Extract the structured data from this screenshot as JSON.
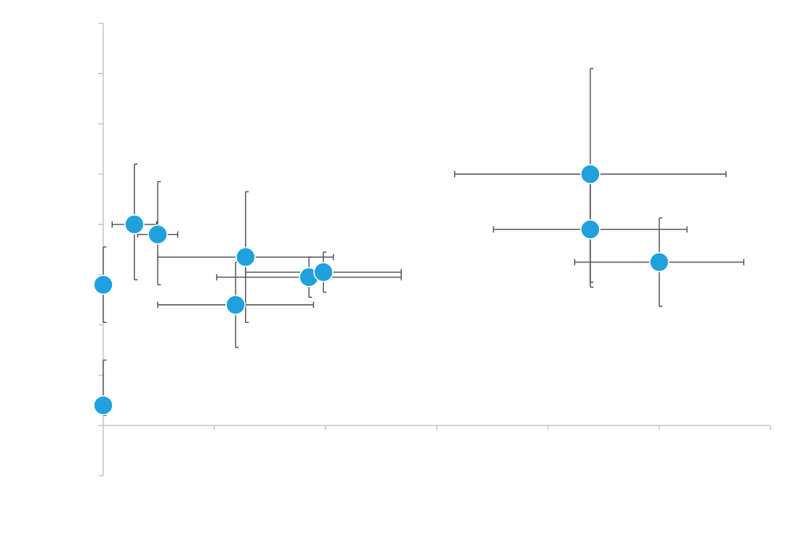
{
  "chart_data": {
    "type": "scatter",
    "title": "",
    "xlabel": "",
    "ylabel": "",
    "xlim": [
      0,
      6
    ],
    "ylim": [
      -1,
      8
    ],
    "x_ticks": [
      0,
      1,
      2,
      3,
      4,
      5,
      6
    ],
    "y_ticks": [
      -1,
      0,
      1,
      2,
      3,
      4,
      5,
      6,
      7,
      8
    ],
    "grid": false,
    "legend": "none",
    "point_color": "#1EA1DC",
    "error_bar_color": "#555555",
    "axis_color": "#C8C8C8",
    "points": [
      {
        "x": 0.0,
        "y": 0.4,
        "xerr": [
          0.0,
          0.0
        ],
        "yerr": [
          0.2,
          0.9
        ]
      },
      {
        "x": 0.0,
        "y": 2.8,
        "xerr": [
          0.0,
          0.0
        ],
        "yerr": [
          0.75,
          0.75
        ]
      },
      {
        "x": 0.28,
        "y": 4.0,
        "xerr": [
          0.2,
          0.2
        ],
        "yerr": [
          1.1,
          1.2
        ]
      },
      {
        "x": 0.49,
        "y": 3.8,
        "xerr": [
          0.18,
          0.18
        ],
        "yerr": [
          1.0,
          1.05
        ]
      },
      {
        "x": 1.19,
        "y": 2.4,
        "xerr": [
          0.7,
          0.7
        ],
        "yerr": [
          0.85,
          0.85
        ]
      },
      {
        "x": 1.28,
        "y": 3.35,
        "xerr": [
          0.79,
          0.79
        ],
        "yerr": [
          1.3,
          1.3
        ]
      },
      {
        "x": 1.85,
        "y": 2.95,
        "xerr": [
          0.83,
          0.83
        ],
        "yerr": [
          0.4,
          0.4
        ]
      },
      {
        "x": 1.98,
        "y": 3.05,
        "xerr": [
          0.7,
          0.7
        ],
        "yerr": [
          0.4,
          0.4
        ]
      },
      {
        "x": 4.38,
        "y": 5.0,
        "xerr": [
          1.22,
          1.22
        ],
        "yerr": [
          2.25,
          2.1
        ]
      },
      {
        "x": 4.38,
        "y": 3.9,
        "xerr": [
          0.87,
          0.87
        ],
        "yerr": [
          1.05,
          1.05
        ]
      },
      {
        "x": 5.0,
        "y": 3.25,
        "xerr": [
          0.76,
          0.76
        ],
        "yerr": [
          0.88,
          0.88
        ]
      }
    ]
  }
}
